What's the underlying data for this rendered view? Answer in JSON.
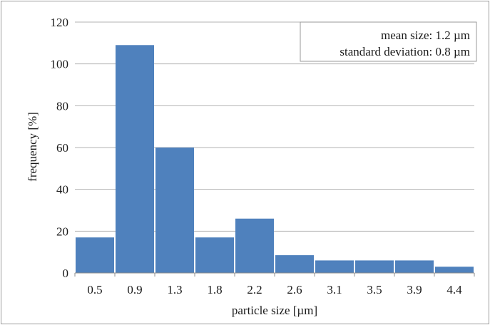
{
  "chart_data": {
    "type": "bar",
    "title": "",
    "xlabel": "particle size [µm]",
    "ylabel": "frequency [%]",
    "categories": [
      "0.5",
      "0.9",
      "1.3",
      "1.8",
      "2.2",
      "2.6",
      "3.1",
      "3.5",
      "3.9",
      "4.4"
    ],
    "series": [
      {
        "values": [
          17,
          109,
          60,
          17,
          26,
          8.5,
          6,
          6,
          6,
          3
        ],
        "color": "#4f81bd"
      }
    ],
    "ylim": [
      0,
      120
    ],
    "yticks": [
      0,
      20,
      40,
      60,
      80,
      100,
      120
    ],
    "grid": true,
    "annotations": [
      "mean size: 1.2 µm",
      "standard deviation: 0.8 µm"
    ],
    "annotation_placement": "top-right"
  }
}
